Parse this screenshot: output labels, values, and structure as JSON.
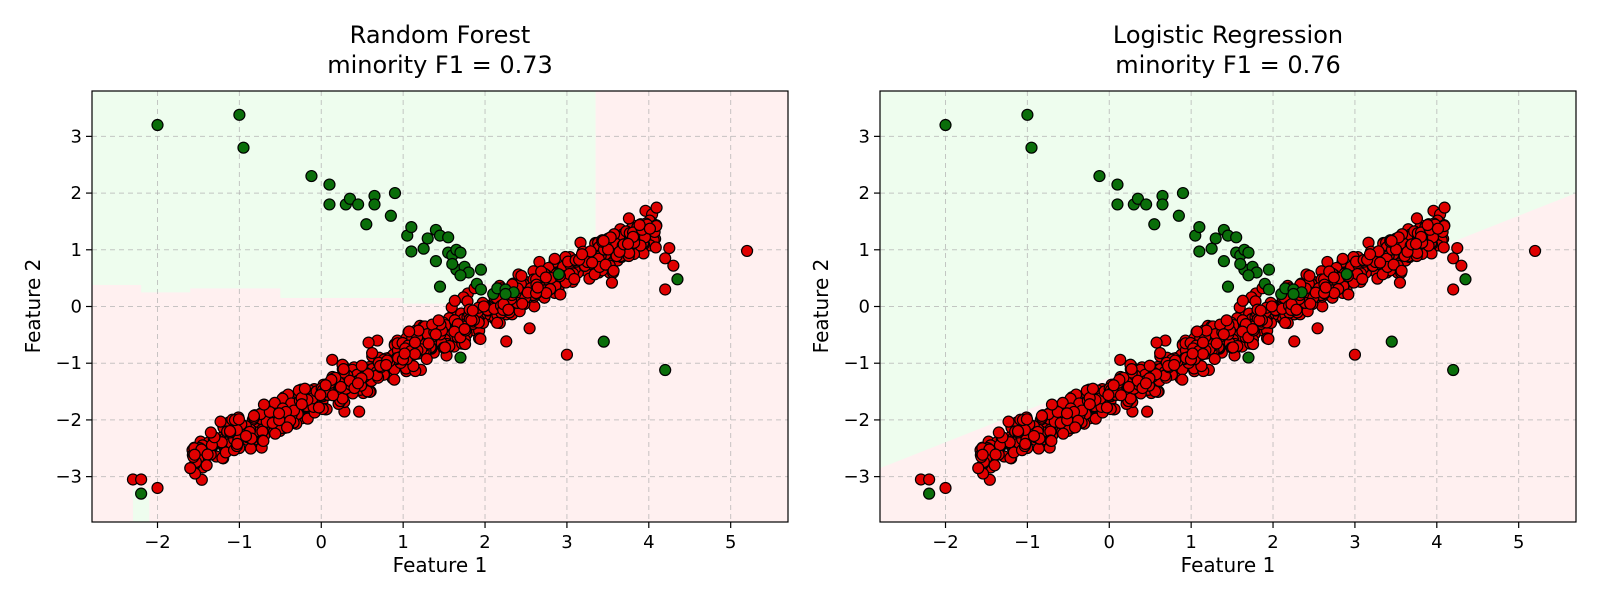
{
  "chart_data": [
    {
      "type": "scatter",
      "title_line1": "Random Forest",
      "title_line2": "minority F1 = 0.73",
      "xlabel": "Feature 1",
      "ylabel": "Feature 2",
      "xlim": [
        -2.8,
        5.7
      ],
      "ylim": [
        -3.8,
        3.8
      ],
      "xticks": [
        -2,
        -1,
        0,
        1,
        2,
        3,
        4,
        5
      ],
      "yticks": [
        -3,
        -2,
        -1,
        0,
        1,
        2,
        3
      ],
      "grid": true,
      "region_colors": {
        "green": "#eefdee",
        "red": "#fff0f0"
      },
      "decision_regions": {
        "kind": "steps",
        "green_region": [
          [
            -2.8,
            0.38
          ],
          [
            -2.2,
            0.38
          ],
          [
            -2.2,
            0.25
          ],
          [
            -1.6,
            0.25
          ],
          [
            -1.6,
            0.32
          ],
          [
            -0.5,
            0.32
          ],
          [
            -0.5,
            0.15
          ],
          [
            1.0,
            0.15
          ],
          [
            1.0,
            0.05
          ],
          [
            2.0,
            0.05
          ],
          [
            2.0,
            0.4
          ],
          [
            2.9,
            0.4
          ],
          [
            2.9,
            0.7
          ],
          [
            3.1,
            0.7
          ],
          [
            3.1,
            1.1
          ],
          [
            3.35,
            1.1
          ],
          [
            3.35,
            3.8
          ],
          [
            -2.8,
            3.8
          ]
        ],
        "green_patch": [
          [
            -2.3,
            -3.8
          ],
          [
            -2.3,
            -3.2
          ],
          [
            -2.1,
            -3.2
          ],
          [
            -2.1,
            -3.8
          ]
        ]
      },
      "series": [
        {
          "class": "majority",
          "color": "#e00000",
          "cluster": {
            "x_from": -1.6,
            "x_to": 4.1,
            "slope": 0.72,
            "intercept": -1.55,
            "spread": 0.3,
            "count": 900
          },
          "extra_points": [
            [
              -2.3,
              -3.05
            ],
            [
              -2.2,
              -3.05
            ],
            [
              -2.0,
              -3.2
            ],
            [
              -1.6,
              -2.85
            ],
            [
              -1.4,
              -2.8
            ],
            [
              4.2,
              0.85
            ],
            [
              4.25,
              1.03
            ],
            [
              4.3,
              0.72
            ],
            [
              4.2,
              0.3
            ],
            [
              5.2,
              0.98
            ],
            [
              3.0,
              -0.85
            ],
            [
              -0.2,
              -1.45
            ],
            [
              3.55,
              0.42
            ]
          ]
        },
        {
          "class": "minority",
          "color": "#0a6e0a",
          "points": [
            [
              -2.0,
              3.2
            ],
            [
              -1.0,
              3.38
            ],
            [
              -0.95,
              2.8
            ],
            [
              -2.2,
              -3.3
            ],
            [
              -0.12,
              2.3
            ],
            [
              0.1,
              2.15
            ],
            [
              0.1,
              1.8
            ],
            [
              0.3,
              1.8
            ],
            [
              0.35,
              1.9
            ],
            [
              0.45,
              1.8
            ],
            [
              0.55,
              1.45
            ],
            [
              0.65,
              1.95
            ],
            [
              0.65,
              1.8
            ],
            [
              0.85,
              1.6
            ],
            [
              0.9,
              2.0
            ],
            [
              1.05,
              1.25
            ],
            [
              1.1,
              1.4
            ],
            [
              1.1,
              0.97
            ],
            [
              1.25,
              1.02
            ],
            [
              1.3,
              1.2
            ],
            [
              1.4,
              1.35
            ],
            [
              1.45,
              1.25
            ],
            [
              1.4,
              0.8
            ],
            [
              1.55,
              1.22
            ],
            [
              1.55,
              0.95
            ],
            [
              1.6,
              0.9
            ],
            [
              1.65,
              1.0
            ],
            [
              1.7,
              0.95
            ],
            [
              1.65,
              0.65
            ],
            [
              1.75,
              0.7
            ],
            [
              1.8,
              0.6
            ],
            [
              1.7,
              0.55
            ],
            [
              1.45,
              0.35
            ],
            [
              1.6,
              0.75
            ],
            [
              1.9,
              0.4
            ],
            [
              1.95,
              0.3
            ],
            [
              1.95,
              0.65
            ],
            [
              2.1,
              0.22
            ],
            [
              2.15,
              0.32
            ],
            [
              2.25,
              0.3
            ],
            [
              2.35,
              0.25
            ],
            [
              2.25,
              0.22
            ],
            [
              2.9,
              0.57
            ],
            [
              3.45,
              -0.62
            ],
            [
              4.2,
              -1.12
            ],
            [
              4.35,
              0.48
            ],
            [
              1.7,
              -0.9
            ]
          ]
        }
      ]
    },
    {
      "type": "scatter",
      "title_line1": "Logistic Regression",
      "title_line2": "minority F1 = 0.76",
      "xlabel": "Feature 1",
      "ylabel": "Feature 2",
      "xlim": [
        -2.8,
        5.7
      ],
      "ylim": [
        -3.8,
        3.8
      ],
      "xticks": [
        -2,
        -1,
        0,
        1,
        2,
        3,
        4,
        5
      ],
      "yticks": [
        -3,
        -2,
        -1,
        0,
        1,
        2,
        3
      ],
      "grid": true,
      "region_colors": {
        "green": "#eefdee",
        "red": "#fff0f0"
      },
      "decision_regions": {
        "kind": "line",
        "boundary": [
          [
            -2.8,
            -2.85
          ],
          [
            5.7,
            2.0
          ]
        ],
        "green_side": "above"
      },
      "series": [
        {
          "class": "majority",
          "color": "#e00000",
          "cluster": {
            "x_from": -1.6,
            "x_to": 4.1,
            "slope": 0.72,
            "intercept": -1.55,
            "spread": 0.3,
            "count": 900
          },
          "extra_points": [
            [
              -2.3,
              -3.05
            ],
            [
              -2.2,
              -3.05
            ],
            [
              -2.0,
              -3.2
            ],
            [
              -1.6,
              -2.85
            ],
            [
              -1.4,
              -2.8
            ],
            [
              4.2,
              0.85
            ],
            [
              4.25,
              1.03
            ],
            [
              4.3,
              0.72
            ],
            [
              4.2,
              0.3
            ],
            [
              5.2,
              0.98
            ],
            [
              3.0,
              -0.85
            ],
            [
              -0.2,
              -1.45
            ],
            [
              3.55,
              0.42
            ]
          ]
        },
        {
          "class": "minority",
          "color": "#0a6e0a",
          "points": [
            [
              -2.0,
              3.2
            ],
            [
              -1.0,
              3.38
            ],
            [
              -0.95,
              2.8
            ],
            [
              -2.2,
              -3.3
            ],
            [
              -0.12,
              2.3
            ],
            [
              0.1,
              2.15
            ],
            [
              0.1,
              1.8
            ],
            [
              0.3,
              1.8
            ],
            [
              0.35,
              1.9
            ],
            [
              0.45,
              1.8
            ],
            [
              0.55,
              1.45
            ],
            [
              0.65,
              1.95
            ],
            [
              0.65,
              1.8
            ],
            [
              0.85,
              1.6
            ],
            [
              0.9,
              2.0
            ],
            [
              1.05,
              1.25
            ],
            [
              1.1,
              1.4
            ],
            [
              1.1,
              0.97
            ],
            [
              1.25,
              1.02
            ],
            [
              1.3,
              1.2
            ],
            [
              1.4,
              1.35
            ],
            [
              1.45,
              1.25
            ],
            [
              1.4,
              0.8
            ],
            [
              1.55,
              1.22
            ],
            [
              1.55,
              0.95
            ],
            [
              1.6,
              0.9
            ],
            [
              1.65,
              1.0
            ],
            [
              1.7,
              0.95
            ],
            [
              1.65,
              0.65
            ],
            [
              1.75,
              0.7
            ],
            [
              1.8,
              0.6
            ],
            [
              1.7,
              0.55
            ],
            [
              1.45,
              0.35
            ],
            [
              1.6,
              0.75
            ],
            [
              1.9,
              0.4
            ],
            [
              1.95,
              0.3
            ],
            [
              1.95,
              0.65
            ],
            [
              2.1,
              0.22
            ],
            [
              2.15,
              0.32
            ],
            [
              2.25,
              0.3
            ],
            [
              2.35,
              0.25
            ],
            [
              2.25,
              0.22
            ],
            [
              2.9,
              0.57
            ],
            [
              3.45,
              -0.62
            ],
            [
              4.2,
              -1.12
            ],
            [
              4.35,
              0.48
            ],
            [
              1.7,
              -0.9
            ]
          ]
        }
      ]
    }
  ]
}
